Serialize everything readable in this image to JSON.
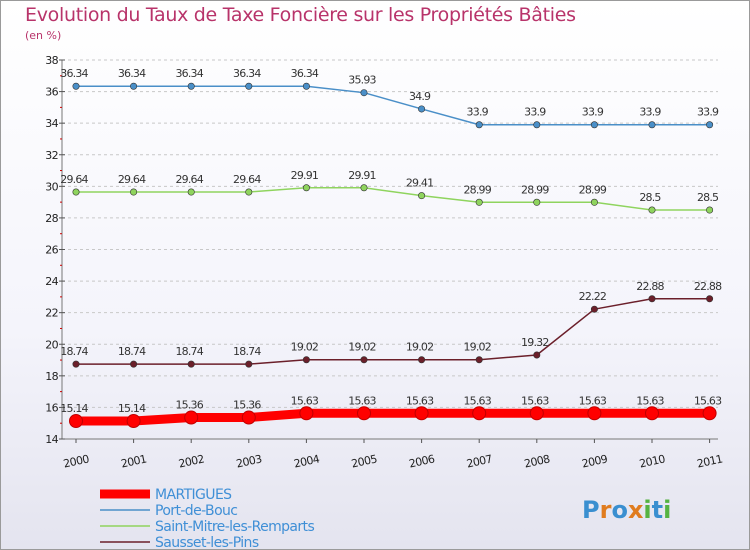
{
  "header": {
    "title": "Evolution du Taux de Taxe Foncière sur les Propriétés Bâties",
    "subtitle": "(en %)"
  },
  "logo": {
    "letters": [
      "P",
      "r",
      "o",
      "x",
      "i",
      "t",
      "i"
    ],
    "colors": [
      "#3a8fd0",
      "#e07c1f",
      "#3a8fd0",
      "#e07c1f",
      "#56b342",
      "#3a8fd0",
      "#56b342"
    ]
  },
  "chart_data": {
    "type": "line",
    "title": "Evolution du Taux de Taxe Foncière sur les Propriétés Bâties",
    "ylabel": "(en %)",
    "xlabel": "",
    "categories": [
      "2000",
      "2001",
      "2002",
      "2003",
      "2004",
      "2005",
      "2006",
      "2007",
      "2008",
      "2009",
      "2010",
      "2011"
    ],
    "ylim": [
      14,
      38
    ],
    "yticks": [
      14,
      16,
      18,
      20,
      22,
      24,
      26,
      28,
      30,
      32,
      34,
      36,
      38
    ],
    "grid": "horizontal dashed",
    "legend_position": "bottom-left",
    "series": [
      {
        "name": "MARTIGUES",
        "color": "#ff0000",
        "labelColor": "#3f8fd6",
        "values": [
          15.14,
          15.14,
          15.36,
          15.36,
          15.63,
          15.63,
          15.63,
          15.63,
          15.63,
          15.63,
          15.63,
          15.63
        ],
        "labels": [
          "15.14",
          "15.14",
          "15.36",
          "15.36",
          "15.63",
          "15.63",
          "15.63",
          "15.63",
          "15.63",
          "15.63",
          "15.63",
          "15.63"
        ],
        "emphasis": true
      },
      {
        "name": "Port-de-Bouc",
        "color": "#4a8fc8",
        "labelColor": "#3f8fd6",
        "values": [
          36.34,
          36.34,
          36.34,
          36.34,
          36.34,
          35.93,
          34.9,
          33.9,
          33.9,
          33.9,
          33.9,
          33.9
        ],
        "labels": [
          "36.34",
          "36.34",
          "36.34",
          "36.34",
          "36.34",
          "35.93",
          "34.9",
          "33.9",
          "33.9",
          "33.9",
          "33.9",
          "33.9"
        ]
      },
      {
        "name": "Saint-Mitre-les-Remparts",
        "color": "#8fd45e",
        "labelColor": "#3f8fd6",
        "values": [
          29.64,
          29.64,
          29.64,
          29.64,
          29.91,
          29.91,
          29.41,
          28.99,
          28.99,
          28.99,
          28.5,
          28.5
        ],
        "labels": [
          "29.64",
          "29.64",
          "29.64",
          "29.64",
          "29.91",
          "29.91",
          "29.41",
          "28.99",
          "28.99",
          "28.99",
          "28.5",
          "28.5"
        ]
      },
      {
        "name": "Sausset-les-Pins",
        "color": "#6b1f2a",
        "labelColor": "#3f8fd6",
        "values": [
          18.74,
          18.74,
          18.74,
          18.74,
          19.02,
          19.02,
          19.02,
          19.02,
          19.32,
          22.22,
          22.88,
          22.88
        ],
        "labels": [
          "18.74",
          "18.74",
          "18.74",
          "18.74",
          "19.02",
          "19.02",
          "19.02",
          "19.02",
          "19.32",
          "22.22",
          "22.88",
          "22.88"
        ]
      }
    ]
  }
}
